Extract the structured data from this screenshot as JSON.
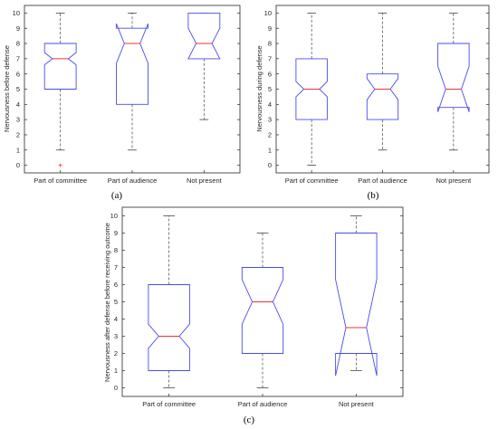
{
  "colors": {
    "box": "#4a4af0",
    "median": "#f03030",
    "whisker": "#444444",
    "outlier": "#ff3030",
    "axis": "#262626"
  },
  "chart_data": [
    {
      "type": "boxplot",
      "panel_label": "(a)",
      "title": "",
      "xlabel": "",
      "ylabel": "Nervousness before defense",
      "ylim": [
        -0.5,
        10.5
      ],
      "yticks": [
        0,
        1,
        2,
        3,
        4,
        5,
        6,
        7,
        8,
        9,
        10
      ],
      "notched": true,
      "grid": false,
      "categories": [
        "Part of committee",
        "Part of audience",
        "Not present"
      ],
      "boxes": [
        {
          "min": 1,
          "q1": 5,
          "median": 7,
          "q3": 8,
          "max": 10,
          "notch_low": 6.6,
          "notch_high": 7.4,
          "outliers": [
            0
          ]
        },
        {
          "min": 1,
          "q1": 4,
          "median": 8,
          "q3": 9,
          "max": 10,
          "notch_low": 6.7,
          "notch_high": 9.3,
          "outliers": []
        },
        {
          "min": 3,
          "q1": 7,
          "median": 8,
          "q3": 10,
          "max": 10,
          "notch_low": 7.0,
          "notch_high": 9.0,
          "outliers": []
        }
      ]
    },
    {
      "type": "boxplot",
      "panel_label": "(b)",
      "title": "",
      "xlabel": "",
      "ylabel": "Nervousness during defense",
      "ylim": [
        -0.5,
        10.5
      ],
      "yticks": [
        0,
        1,
        2,
        3,
        4,
        5,
        6,
        7,
        8,
        9,
        10
      ],
      "notched": true,
      "grid": false,
      "categories": [
        "Part of committee",
        "Part of audience",
        "Not present"
      ],
      "boxes": [
        {
          "min": 0,
          "q1": 3,
          "median": 5,
          "q3": 7,
          "max": 10,
          "notch_low": 4.5,
          "notch_high": 5.5,
          "outliers": []
        },
        {
          "min": 1,
          "q1": 3,
          "median": 5,
          "q3": 6,
          "max": 10,
          "notch_low": 4.3,
          "notch_high": 5.7,
          "outliers": []
        },
        {
          "min": 1,
          "q1": 3.8,
          "median": 5,
          "q3": 8,
          "max": 10,
          "notch_low": 3.5,
          "notch_high": 6.5,
          "outliers": []
        }
      ]
    },
    {
      "type": "boxplot",
      "panel_label": "(c)",
      "title": "",
      "xlabel": "",
      "ylabel": "Nervousness after defense before receiving outcome",
      "ylim": [
        -0.5,
        10.5
      ],
      "yticks": [
        0,
        1,
        2,
        3,
        4,
        5,
        6,
        7,
        8,
        9,
        10
      ],
      "notched": true,
      "grid": false,
      "categories": [
        "Part of committee",
        "Part of audience",
        "Not present"
      ],
      "boxes": [
        {
          "min": 0,
          "q1": 1,
          "median": 3,
          "q3": 6,
          "max": 10,
          "notch_low": 2.3,
          "notch_high": 3.7,
          "outliers": []
        },
        {
          "min": 0,
          "q1": 2,
          "median": 5,
          "q3": 7,
          "max": 9,
          "notch_low": 3.7,
          "notch_high": 6.3,
          "outliers": []
        },
        {
          "min": 1,
          "q1": 2,
          "median": 3.5,
          "q3": 9,
          "max": 10,
          "notch_low": 0.7,
          "notch_high": 6.3,
          "outliers": []
        }
      ]
    }
  ]
}
